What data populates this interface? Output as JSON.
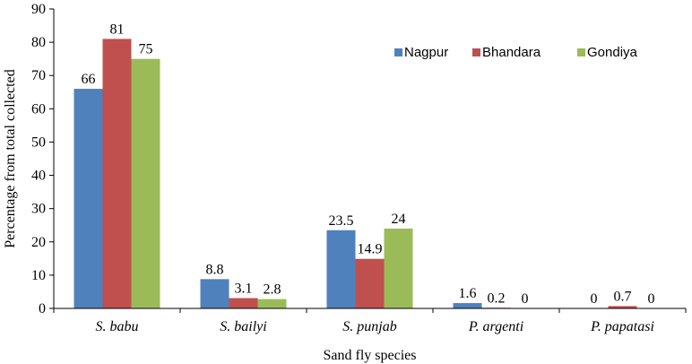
{
  "chart_data": {
    "type": "bar",
    "title": "",
    "xlabel": "Sand fly species",
    "ylabel": "Percentage from total collected",
    "ylim": [
      0,
      90
    ],
    "yticks": [
      0,
      10,
      20,
      30,
      40,
      50,
      60,
      70,
      80,
      90
    ],
    "categories": [
      "S. babu",
      "S. bailyi",
      "S. punjab",
      "P. argenti",
      "P. papatasi"
    ],
    "series": [
      {
        "name": "Nagpur",
        "color": "#4f81bd",
        "values": [
          66,
          8.8,
          23.5,
          1.6,
          0
        ]
      },
      {
        "name": "Bhandara",
        "color": "#c0504d",
        "values": [
          81,
          3.1,
          14.9,
          0.2,
          0.7
        ]
      },
      {
        "name": "Gondiya",
        "color": "#9bbb59",
        "values": [
          75,
          2.8,
          24,
          0,
          0
        ]
      }
    ],
    "data_labels": {
      "S. babu": [
        "66",
        "81",
        "75"
      ],
      "S. bailyi": [
        "8.8",
        "3.1",
        "2.8"
      ],
      "S. punjab": [
        "23.5",
        "14.9",
        "24"
      ],
      "P. argenti": [
        "1.6",
        "0.2",
        "0"
      ],
      "P. papatasi": [
        "0",
        "0.7",
        "0"
      ]
    },
    "legend_position": "top-right",
    "grid": false
  }
}
